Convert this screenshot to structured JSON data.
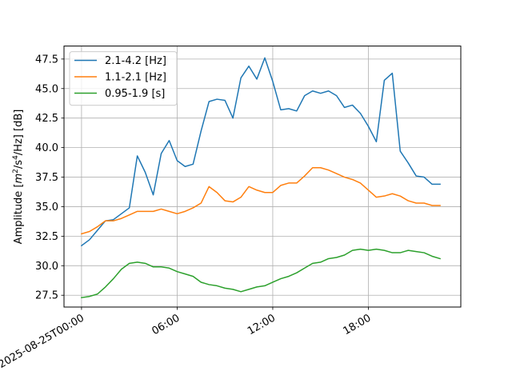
{
  "chart_data": {
    "type": "line",
    "title": "",
    "xlabel": "",
    "ylabel": "Amplitude [m²/s⁴/Hz] [dB]",
    "ylabel_parts": {
      "main": "Amplitude [",
      "m": "m",
      "exp2": "2",
      "mid": "/s",
      "exp4": "4",
      "tail": "/Hz] [dB]"
    },
    "x_unit": "hours since 2025-08-25T00:00",
    "xlim": [
      -1.1,
      23.8
    ],
    "ylim": [
      26.5,
      48.6
    ],
    "grid": true,
    "legend_position": "top-left",
    "x_ticks": [
      {
        "value": 0,
        "label": "2025-08-25T00:00"
      },
      {
        "value": 6,
        "label": "06:00"
      },
      {
        "value": 12,
        "label": "12:00"
      },
      {
        "value": 18,
        "label": "18:00"
      }
    ],
    "y_ticks": [
      {
        "value": 27.5,
        "label": "27.5"
      },
      {
        "value": 30.0,
        "label": "30.0"
      },
      {
        "value": 32.5,
        "label": "32.5"
      },
      {
        "value": 35.0,
        "label": "35.0"
      },
      {
        "value": 37.5,
        "label": "37.5"
      },
      {
        "value": 40.0,
        "label": "40.0"
      },
      {
        "value": 42.5,
        "label": "42.5"
      },
      {
        "value": 45.0,
        "label": "45.0"
      },
      {
        "value": 47.5,
        "label": "47.5"
      }
    ],
    "x": [
      0,
      0.5,
      1,
      1.5,
      2,
      2.5,
      3,
      3.5,
      4,
      4.5,
      5,
      5.5,
      6,
      6.5,
      7,
      7.5,
      8,
      8.5,
      9,
      9.5,
      10,
      10.5,
      11,
      11.5,
      12,
      12.5,
      13,
      13.5,
      14,
      14.5,
      15,
      15.5,
      16,
      16.5,
      17,
      17.5,
      18,
      18.5,
      19,
      19.5,
      20,
      20.5,
      21,
      21.5,
      22,
      22.5
    ],
    "series": [
      {
        "name": "2.1-4.2 [Hz]",
        "color": "#1f77b4",
        "values": [
          31.7,
          32.2,
          33.0,
          33.8,
          33.9,
          34.4,
          34.9,
          39.3,
          37.9,
          36.0,
          39.5,
          40.6,
          38.9,
          38.4,
          38.6,
          41.4,
          43.9,
          44.1,
          44.0,
          42.5,
          45.9,
          46.9,
          45.8,
          47.6,
          45.6,
          43.2,
          43.3,
          43.1,
          44.4,
          44.8,
          44.6,
          44.8,
          44.4,
          43.4,
          43.6,
          42.9,
          41.8,
          40.5,
          45.7,
          46.3,
          39.7,
          38.7,
          37.6,
          37.5,
          36.9,
          36.9
        ]
      },
      {
        "name": "1.1-2.1 [Hz]",
        "color": "#ff7f0e",
        "values": [
          32.7,
          32.9,
          33.3,
          33.8,
          33.8,
          34.0,
          34.3,
          34.6,
          34.6,
          34.6,
          34.8,
          34.6,
          34.4,
          34.6,
          34.9,
          35.3,
          36.7,
          36.2,
          35.5,
          35.4,
          35.8,
          36.7,
          36.4,
          36.2,
          36.2,
          36.8,
          37.0,
          37.0,
          37.6,
          38.3,
          38.3,
          38.1,
          37.8,
          37.5,
          37.3,
          37.0,
          36.4,
          35.8,
          35.9,
          36.1,
          35.9,
          35.5,
          35.3,
          35.3,
          35.1,
          35.1
        ]
      },
      {
        "name": "0.95-1.9 [s]",
        "color": "#2ca02c",
        "values": [
          27.3,
          27.4,
          27.6,
          28.2,
          28.9,
          29.7,
          30.2,
          30.3,
          30.2,
          29.9,
          29.9,
          29.8,
          29.5,
          29.3,
          29.1,
          28.6,
          28.4,
          28.3,
          28.1,
          28.0,
          27.8,
          28.0,
          28.2,
          28.3,
          28.6,
          28.9,
          29.1,
          29.4,
          29.8,
          30.2,
          30.3,
          30.6,
          30.7,
          30.9,
          31.3,
          31.4,
          31.3,
          31.4,
          31.3,
          31.1,
          31.1,
          31.3,
          31.2,
          31.1,
          30.8,
          30.6
        ]
      }
    ]
  }
}
